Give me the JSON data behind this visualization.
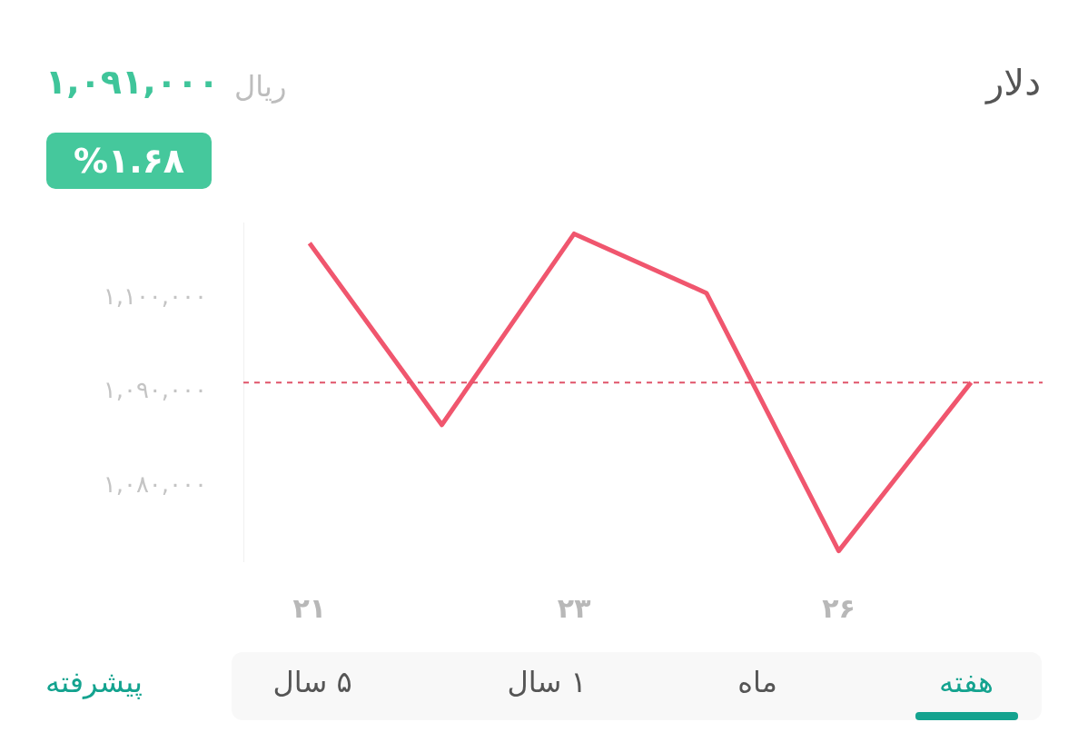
{
  "chart_data": {
    "type": "line",
    "title": "دلار",
    "annotations": [
      "۱,۰۹۱,۰۰۰",
      "ریال",
      "%۱.۶۸",
      "هفته",
      "ماه",
      "۱ سال",
      "۵ سال",
      "پیشرفته"
    ],
    "categories": [
      "۲۱",
      null,
      "۲۳",
      null,
      "۲۶",
      null
    ],
    "series": [
      {
        "color": "#f0566e",
        "values": [
          1105800,
          1086500,
          1106800,
          1100500,
          1073100,
          1091000
        ]
      }
    ],
    "ylim": [
      1072000,
      1108000
    ],
    "yticks": [
      {
        "value": 1080000,
        "label": "۱,۰۸۰,۰۰۰"
      },
      {
        "value": 1090000,
        "label": "۱,۰۹۰,۰۰۰"
      },
      {
        "value": 1100000,
        "label": "۱,۱۰۰,۰۰۰"
      }
    ],
    "ref_lines": [
      {
        "axis": "y",
        "value": 1091000,
        "color": "#e0546a",
        "line_style": "dashed"
      }
    ],
    "grid": false,
    "legend": false
  }
}
